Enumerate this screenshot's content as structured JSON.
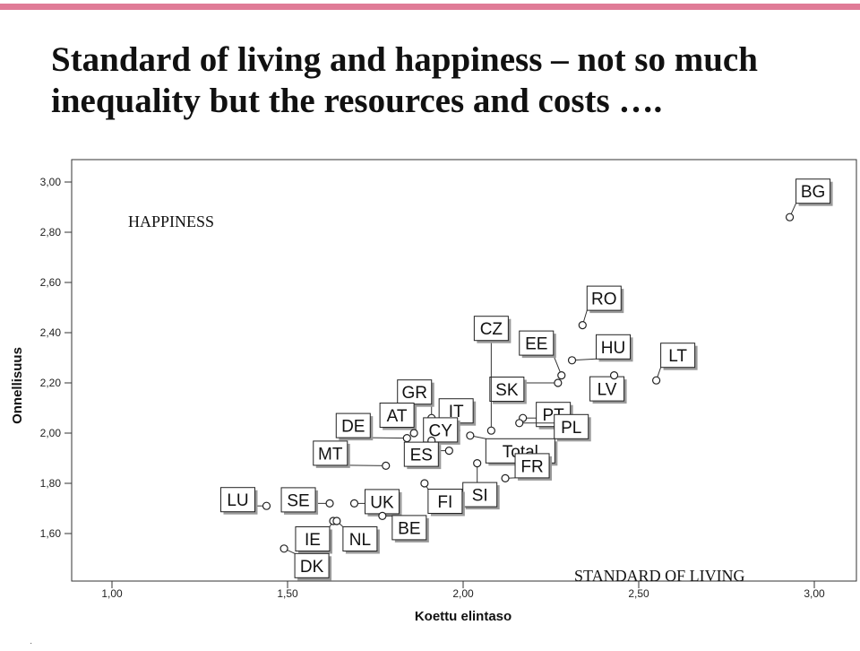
{
  "slide": {
    "title_line1": "Standard of living and happiness – not so much",
    "title_line2": "inequality but the resources and costs …."
  },
  "chart_data": {
    "type": "scatter",
    "xlabel": "Koettu elintaso",
    "ylabel": "Onnellisuus",
    "xlim": [
      1.0,
      3.0
    ],
    "ylim": [
      1.5,
      3.0
    ],
    "x_ticks": [
      "1,00",
      "1,50",
      "2,00",
      "2,50",
      "3,00"
    ],
    "y_ticks": [
      "1,60",
      "1,80",
      "2,00",
      "2,20",
      "2,40",
      "2,60",
      "2,80",
      "3,00"
    ],
    "grid": false,
    "annotations": {
      "y_note": "HAPPINESS",
      "x_note": "STANDARD OF LIVING"
    },
    "points": [
      {
        "label": "BG",
        "x": 2.93,
        "y": 2.86
      },
      {
        "label": "RO",
        "x": 2.34,
        "y": 2.43
      },
      {
        "label": "HU",
        "x": 2.31,
        "y": 2.29
      },
      {
        "label": "EE",
        "x": 2.28,
        "y": 2.23
      },
      {
        "label": "SK",
        "x": 2.27,
        "y": 2.2
      },
      {
        "label": "LT",
        "x": 2.55,
        "y": 2.21
      },
      {
        "label": "LV",
        "x": 2.43,
        "y": 2.23
      },
      {
        "label": "CZ",
        "x": 2.08,
        "y": 2.01
      },
      {
        "label": "PT",
        "x": 2.17,
        "y": 2.06
      },
      {
        "label": "PL",
        "x": 2.16,
        "y": 2.04
      },
      {
        "label": "Total",
        "x": 2.02,
        "y": 1.99
      },
      {
        "label": "IT",
        "x": 1.98,
        "y": 2.01
      },
      {
        "label": "GR",
        "x": 1.91,
        "y": 2.06
      },
      {
        "label": "AT",
        "x": 1.86,
        "y": 2.0
      },
      {
        "label": "DE",
        "x": 1.84,
        "y": 1.98
      },
      {
        "label": "CY",
        "x": 1.91,
        "y": 1.97
      },
      {
        "label": "ES",
        "x": 1.96,
        "y": 1.93
      },
      {
        "label": "MT",
        "x": 1.78,
        "y": 1.87
      },
      {
        "label": "SI",
        "x": 2.04,
        "y": 1.88
      },
      {
        "label": "FR",
        "x": 2.12,
        "y": 1.82
      },
      {
        "label": "FI",
        "x": 1.89,
        "y": 1.8
      },
      {
        "label": "UK",
        "x": 1.69,
        "y": 1.72
      },
      {
        "label": "LU",
        "x": 1.44,
        "y": 1.71
      },
      {
        "label": "SE",
        "x": 1.62,
        "y": 1.72
      },
      {
        "label": "BE",
        "x": 1.77,
        "y": 1.67
      },
      {
        "label": "IE",
        "x": 1.63,
        "y": 1.65
      },
      {
        "label": "NL",
        "x": 1.64,
        "y": 1.65
      },
      {
        "label": "DK",
        "x": 1.49,
        "y": 1.54
      }
    ]
  }
}
